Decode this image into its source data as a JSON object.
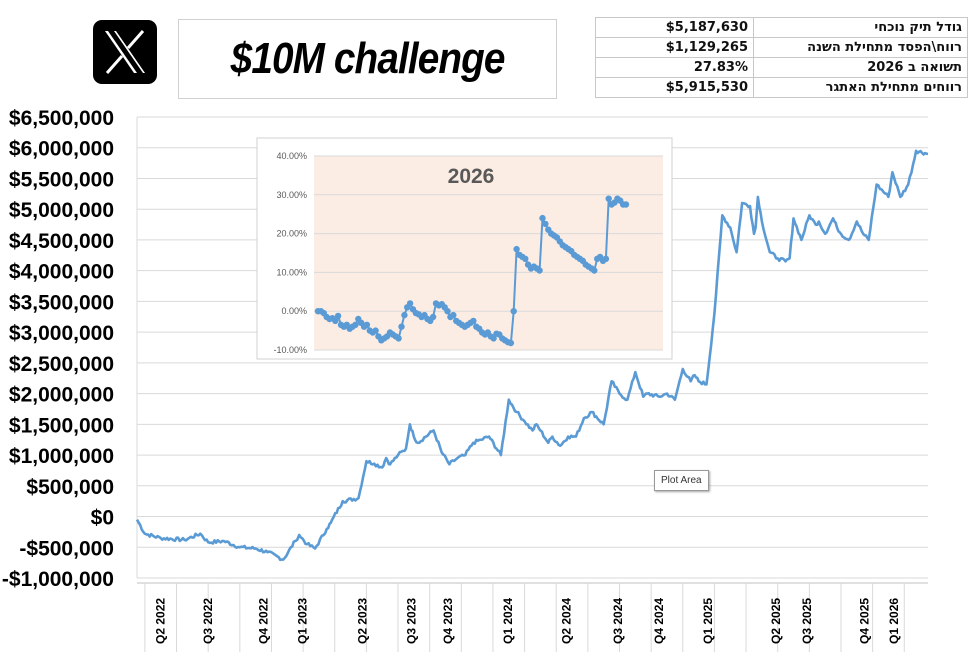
{
  "logo": {
    "icon": "x-logo-icon"
  },
  "header": {
    "title": "$10M challenge"
  },
  "stats": [
    {
      "label": "גודל תיק נוכחי",
      "value": "$5,187,630"
    },
    {
      "label": "רווח\\הפסד מתחילת השנה",
      "value": "$1,129,265"
    },
    {
      "label": "תשואה ב 2026",
      "value": "27.83%"
    },
    {
      "label": "רווחים מתחילת האתגר",
      "value": "$5,915,530"
    }
  ],
  "tooltip": {
    "text": "Plot Area"
  },
  "chart_data": [
    {
      "type": "line",
      "title": "",
      "xlabel": "",
      "ylabel": "",
      "ylim": [
        -1000000,
        6500000
      ],
      "y_ticks": [
        6500000,
        6000000,
        5500000,
        5000000,
        4500000,
        4000000,
        3500000,
        3000000,
        2500000,
        2000000,
        1500000,
        1000000,
        500000,
        0,
        -500000,
        -1000000
      ],
      "y_tick_labels": [
        "$6,500,000",
        "$6,000,000",
        "$5,500,000",
        "$5,000,000",
        "$4,500,000",
        "$4,000,000",
        "$3,500,000",
        "$3,000,000",
        "$2,500,000",
        "$2,000,000",
        "$1,500,000",
        "$1,000,000",
        "$500,000",
        "$0",
        "-$500,000",
        "-$1,000,000"
      ],
      "x_tick_labels": [
        "Q2 2022",
        "Q3 2022",
        "Q4 2022",
        "Q1 2023",
        "Q2 2023",
        "Q3 2023",
        "Q4 2023",
        "Q1 2024",
        "Q2 2024",
        "Q3 2024",
        "Q4 2024",
        "Q1 2025",
        "Q2 2025",
        "Q3 2025",
        "Q4 2025",
        "Q1 2026"
      ],
      "x_tick_positions": [
        0.03,
        0.09,
        0.16,
        0.209,
        0.285,
        0.347,
        0.393,
        0.469,
        0.543,
        0.608,
        0.66,
        0.722,
        0.808,
        0.847,
        0.92,
        0.957
      ],
      "grid": true,
      "color": "#5b9bd5",
      "series": [
        {
          "x": [
            0.0,
            0.01,
            0.03,
            0.06,
            0.08,
            0.09,
            0.11,
            0.13,
            0.15,
            0.165,
            0.185,
            0.2,
            0.205,
            0.215,
            0.225,
            0.24,
            0.245,
            0.26,
            0.28,
            0.29,
            0.3,
            0.31,
            0.315,
            0.32,
            0.33,
            0.34,
            0.345,
            0.35,
            0.355,
            0.375,
            0.385,
            0.395,
            0.405,
            0.415,
            0.425,
            0.435,
            0.445,
            0.46,
            0.47,
            0.48,
            0.49,
            0.5,
            0.505,
            0.51,
            0.52,
            0.525,
            0.535,
            0.545,
            0.555,
            0.565,
            0.575,
            0.59,
            0.6,
            0.61,
            0.62,
            0.63,
            0.64,
            0.645,
            0.66,
            0.67,
            0.68,
            0.69,
            0.7,
            0.705,
            0.71,
            0.72,
            0.73,
            0.74,
            0.75,
            0.758,
            0.765,
            0.775,
            0.78,
            0.782,
            0.785,
            0.79,
            0.8,
            0.81,
            0.82,
            0.825,
            0.83,
            0.84,
            0.85,
            0.858,
            0.862,
            0.87,
            0.88,
            0.885,
            0.89,
            0.9,
            0.91,
            0.918,
            0.925,
            0.935,
            0.95,
            0.955,
            0.965,
            0.975,
            0.985,
            1.0
          ],
          "y": [
            -50000,
            -280000,
            -350000,
            -380000,
            -280000,
            -420000,
            -400000,
            -500000,
            -520000,
            -580000,
            -700000,
            -400000,
            -300000,
            -450000,
            -520000,
            -200000,
            -100000,
            250000,
            300000,
            900000,
            860000,
            800000,
            950000,
            850000,
            1000000,
            1100000,
            1500000,
            1300000,
            1200000,
            1400000,
            1050000,
            850000,
            950000,
            1000000,
            1200000,
            1250000,
            1300000,
            1000000,
            1900000,
            1700000,
            1550000,
            1400000,
            1500000,
            1400000,
            1200000,
            1300000,
            1150000,
            1300000,
            1300000,
            1600000,
            1700000,
            1500000,
            2200000,
            2000000,
            1900000,
            2350000,
            1950000,
            2000000,
            1950000,
            2000000,
            1900000,
            2400000,
            2200000,
            2300000,
            2200000,
            2150000,
            3300000,
            4900000,
            4700000,
            4300000,
            5100000,
            5050000,
            4600000,
            4700000,
            5200000,
            4800000,
            4300000,
            4200000,
            4150000,
            4200000,
            4850000,
            4500000,
            4900000,
            4750000,
            4800000,
            4600000,
            4850000,
            4700000,
            4600000,
            4500000,
            4800000,
            4600000,
            4500000,
            5400000,
            5200000,
            5600000,
            5200000,
            5400000,
            5950000,
            5900000
          ]
        }
      ]
    },
    {
      "type": "line",
      "title": "2026",
      "xlabel": "",
      "ylabel": "",
      "ylim": [
        -10,
        40
      ],
      "y_ticks": [
        40,
        30,
        20,
        10,
        0,
        -10
      ],
      "y_tick_labels": [
        "40.00%",
        "30.00%",
        "20.00%",
        "10.00%",
        "0.00%",
        "-10.00%"
      ],
      "grid": true,
      "background": "#fcede4",
      "color": "#5b9bd5",
      "series": [
        {
          "x": [
            0,
            1,
            2,
            3,
            4,
            5,
            6,
            7,
            8,
            9,
            10,
            11,
            12,
            13,
            14,
            15,
            16,
            17,
            18,
            19,
            20,
            21,
            22,
            23,
            24,
            25,
            26,
            27,
            28,
            29,
            30,
            31,
            32,
            33,
            34,
            35,
            36,
            37,
            38,
            39,
            40,
            41,
            42,
            43,
            44,
            45,
            46,
            47,
            48,
            49,
            50,
            51,
            52,
            53,
            54,
            55,
            56,
            57,
            58,
            59,
            60,
            61,
            62,
            63,
            64,
            65,
            66,
            67,
            68,
            69,
            70,
            71,
            72,
            73,
            74,
            75,
            76,
            77,
            78,
            79,
            80,
            81,
            82,
            83,
            84,
            85,
            86,
            87,
            88,
            89,
            90,
            91,
            92,
            93,
            94,
            95,
            96,
            97,
            98,
            99,
            100,
            101,
            102,
            103,
            104,
            105,
            106,
            107
          ],
          "y": [
            0,
            0,
            -0.5,
            -1.5,
            -2,
            -1.8,
            -2.5,
            -1.2,
            -3.5,
            -4,
            -3.5,
            -4.5,
            -4,
            -3.5,
            -2,
            -3,
            -4,
            -3.5,
            -5,
            -5.5,
            -5,
            -6.5,
            -7.5,
            -7,
            -6.5,
            -5.5,
            -6,
            -6.5,
            -7,
            -4,
            -1,
            1,
            2,
            0.5,
            -0.5,
            -0.8,
            -1.5,
            -1,
            -2,
            -2.5,
            -1.5,
            2,
            1.5,
            1.8,
            1,
            0,
            -1.5,
            -1,
            -2.5,
            -3,
            -3.5,
            -4,
            -3.5,
            -3,
            -2.5,
            -4,
            -4.5,
            -5.5,
            -6,
            -5.5,
            -6.5,
            -7,
            -5.8,
            -6,
            -7,
            -7.5,
            -8,
            -8.2,
            0,
            16,
            14.5,
            14,
            13.5,
            12,
            11,
            11.5,
            11,
            10.5,
            24,
            22.5,
            21,
            20,
            19.5,
            19,
            18,
            17,
            16.5,
            16,
            15.5,
            14.5,
            14,
            13.5,
            13,
            12,
            11.5,
            11,
            10.5,
            13.5,
            14,
            13,
            13.5,
            29,
            27.5,
            28,
            29,
            28.5,
            27.5,
            27.5
          ]
        }
      ]
    }
  ]
}
